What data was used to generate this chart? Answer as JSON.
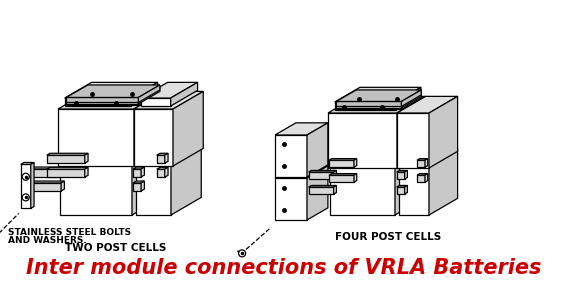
{
  "title": "Inter module connections of VRLA Batteries",
  "title_color": "#cc0000",
  "title_fontsize": 15,
  "title_fontweight": "bold",
  "title_fontstyle": "italic",
  "label_left_line1": "STAINLESS STEEL BOLTS",
  "label_left_line2": "AND WASHERS.",
  "label_left_line3": "TWO POST CELLS",
  "label_right": "FOUR POST CELLS",
  "label_color": "#000000",
  "label_fontsize": 6.5,
  "label_bold_fontsize": 7.5,
  "bg_color": "#ffffff",
  "fig_width": 5.68,
  "fig_height": 3.0,
  "dpi": 100,
  "ec": "black",
  "lw": 0.8,
  "face_top": "#e0e0e0",
  "face_right": "#c8c8c8",
  "face_front": "#f5f5f5",
  "face_white": "#ffffff"
}
